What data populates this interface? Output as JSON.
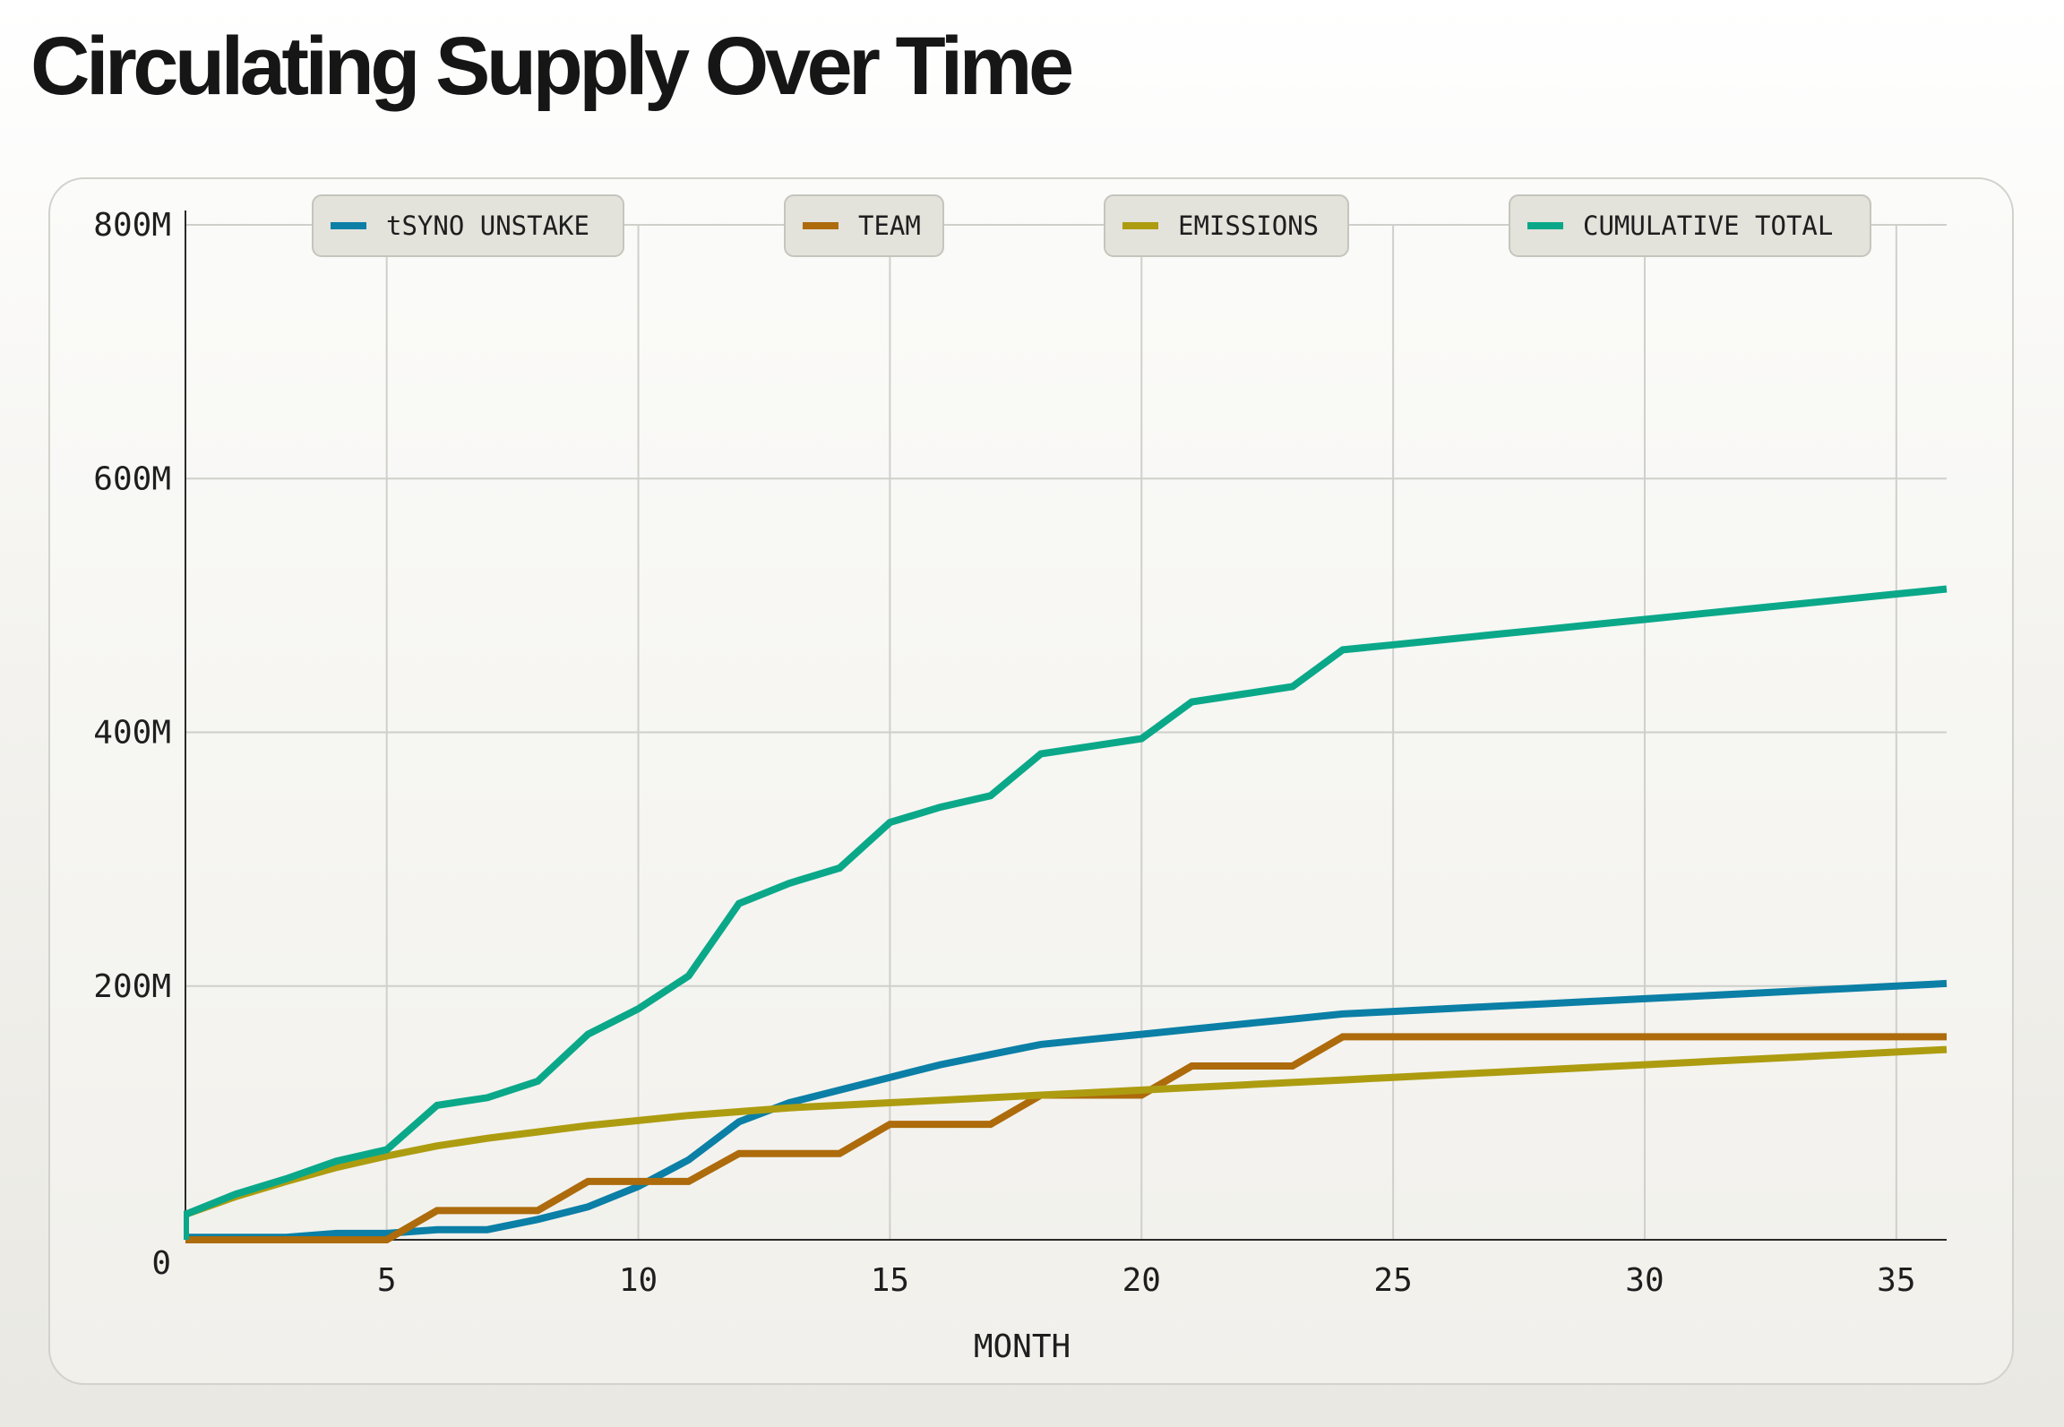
{
  "title": "Circulating Supply Over Time",
  "chart_data": {
    "type": "line",
    "title": "Circulating Supply Over Time",
    "xlabel": "MONTH",
    "ylabel": "",
    "xlim": [
      1,
      36
    ],
    "ylim": [
      0,
      800000000
    ],
    "xticks": [
      5,
      10,
      15,
      20,
      25,
      30,
      35
    ],
    "xtick_labels": [
      "5",
      "10",
      "15",
      "20",
      "25",
      "30",
      "35"
    ],
    "yticks": [
      0,
      200000000,
      400000000,
      600000000,
      800000000
    ],
    "ytick_labels": [
      "0",
      "200M",
      "400M",
      "600M",
      "800M"
    ],
    "grid": true,
    "legend_position": "top",
    "x": [
      1,
      2,
      3,
      4,
      5,
      6,
      7,
      8,
      9,
      10,
      11,
      12,
      13,
      14,
      15,
      16,
      17,
      18,
      19,
      20,
      21,
      22,
      23,
      24,
      25,
      26,
      27,
      28,
      29,
      30,
      31,
      32,
      33,
      34,
      35,
      36
    ],
    "series": [
      {
        "name": "tSYNO UNSTAKE",
        "color": "#0b7fa6",
        "values": [
          2000000,
          2000000,
          2000000,
          5000000,
          5000000,
          8000000,
          8000000,
          16000000,
          26000000,
          42000000,
          63000000,
          93000000,
          108000000,
          118000000,
          128000000,
          138000000,
          146000000,
          154000000,
          158000000,
          162000000,
          166000000,
          170000000,
          174000000,
          178000000,
          180000000,
          182000000,
          184000000,
          186000000,
          188000000,
          190000000,
          192000000,
          194000000,
          196000000,
          198000000,
          200000000,
          202000000
        ]
      },
      {
        "name": "TEAM",
        "color": "#ad6b0c",
        "values": [
          0,
          0,
          0,
          0,
          0,
          23000000,
          23000000,
          23000000,
          46000000,
          46000000,
          46000000,
          68000000,
          68000000,
          68000000,
          91000000,
          91000000,
          91000000,
          114000000,
          114000000,
          114000000,
          137000000,
          137000000,
          137000000,
          160000000,
          160000000,
          160000000,
          160000000,
          160000000,
          160000000,
          160000000,
          160000000,
          160000000,
          160000000,
          160000000,
          160000000,
          160000000
        ]
      },
      {
        "name": "EMISSIONS",
        "color": "#ad9c10",
        "values": [
          20000000,
          34000000,
          46000000,
          57000000,
          66000000,
          74000000,
          80000000,
          85000000,
          90000000,
          94000000,
          98000000,
          101000000,
          104000000,
          106000000,
          108000000,
          110000000,
          112000000,
          114000000,
          116000000,
          118000000,
          120000000,
          122000000,
          124000000,
          126000000,
          128000000,
          130000000,
          132000000,
          134000000,
          136000000,
          138000000,
          140000000,
          142000000,
          144000000,
          146000000,
          148000000,
          150000000
        ]
      },
      {
        "name": "CUMULATIVE TOTAL",
        "color": "#0aa889",
        "values": [
          20000000,
          36000000,
          48000000,
          62000000,
          71000000,
          106000000,
          112000000,
          125000000,
          162000000,
          182000000,
          208000000,
          265000000,
          281000000,
          293000000,
          329000000,
          341000000,
          350000000,
          383000000,
          389000000,
          395000000,
          424000000,
          430000000,
          436000000,
          465000000,
          469000000,
          473000000,
          477000000,
          481000000,
          485000000,
          489000000,
          493000000,
          497000000,
          501000000,
          505000000,
          509000000,
          513000000
        ]
      }
    ]
  }
}
